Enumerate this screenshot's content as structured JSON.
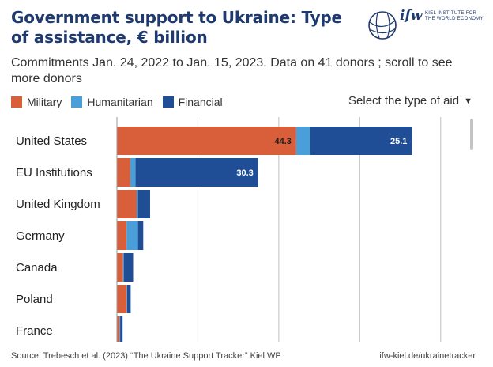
{
  "header": {
    "title": "Government support to Ukraine: Type of assistance, € billion",
    "subtitle": "Commitments Jan. 24, 2022 to Jan. 15, 2023. Data on 41 donors ; scroll to see more donors"
  },
  "logo": {
    "brand": "ifw",
    "subtitle": "KIEL INSTITUTE FOR THE WORLD ECONOMY"
  },
  "controls": {
    "selector_label": "Select the type of aid"
  },
  "colors": {
    "Military": "#d95f3b",
    "Humanitarian": "#4a9fd8",
    "Financial": "#1f4e96",
    "grid": "#bfbfbf"
  },
  "chart_data": {
    "type": "bar",
    "orientation": "horizontal",
    "stacked": true,
    "categories": [
      "United States",
      "EU Institutions",
      "United Kingdom",
      "Germany",
      "Canada",
      "Poland",
      "France"
    ],
    "series": [
      {
        "name": "Military",
        "values": [
          44.3,
          3.3,
          4.9,
          2.4,
          1.5,
          2.4,
          0.6
        ]
      },
      {
        "name": "Humanitarian",
        "values": [
          3.5,
          1.3,
          0.3,
          2.8,
          0.2,
          0.1,
          0.2
        ]
      },
      {
        "name": "Financial",
        "values": [
          25.1,
          30.3,
          3.0,
          1.3,
          2.3,
          0.9,
          0.6
        ]
      }
    ],
    "data_labels": [
      {
        "category": "United States",
        "series": "Military",
        "text": "44.3"
      },
      {
        "category": "United States",
        "series": "Financial",
        "text": "25.1"
      },
      {
        "category": "EU Institutions",
        "series": "Financial",
        "text": "30.3"
      }
    ],
    "xlim": [
      0,
      82
    ],
    "gridlines": [
      20,
      40,
      60,
      80
    ],
    "grid": true,
    "legend_position": "top-left"
  },
  "footer": {
    "source": "Source: Trebesch et al. (2023) “The Ukraine Support Tracker” Kiel WP",
    "link": "ifw-kiel.de/ukrainetracker"
  }
}
